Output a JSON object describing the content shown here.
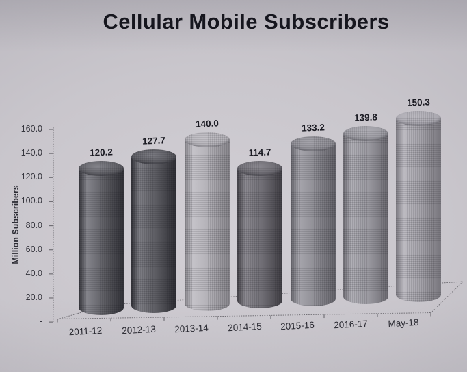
{
  "title": "Cellular Mobile Subscribers",
  "chart_data": {
    "type": "bar",
    "subtype": "3d-cylinder",
    "title": "Cellular Mobile Subscribers",
    "categories": [
      "2011-12",
      "2012-13",
      "2013-14",
      "2014-15",
      "2015-16",
      "2016-17",
      "May-18"
    ],
    "values": [
      120.2,
      127.7,
      140.0,
      114.7,
      133.2,
      139.8,
      150.3
    ],
    "data_labels": [
      "120.2",
      "127.7",
      "140.0",
      "114.7",
      "133.2",
      "139.8",
      "150.3"
    ],
    "xlabel": "",
    "ylabel": "Million Subscribers",
    "ylim": [
      0,
      160
    ],
    "ytick_step": 20,
    "ytick_labels": [
      "160.0",
      "140.0",
      "120.0",
      "100.0",
      "80.0",
      "60.0",
      "40.0",
      "20.0",
      "-"
    ],
    "grid": false,
    "legend": "none",
    "bar_colors": [
      {
        "edge": "#35353b",
        "mid": "#606066",
        "hi": "#84848b",
        "cap": "#5d5d63"
      },
      {
        "edge": "#323238",
        "mid": "#5b5b61",
        "hi": "#7e7e85",
        "cap": "#58585e"
      },
      {
        "edge": "#8b898f",
        "mid": "#b2b0b6",
        "hi": "#c5c3c9",
        "cap": "#b5b3b9"
      },
      {
        "edge": "#454349",
        "mid": "#6f6d74",
        "hi": "#8c8a91",
        "cap": "#6b6970"
      },
      {
        "edge": "#67666d",
        "mid": "#8f8e95",
        "hi": "#a6a5ac",
        "cap": "#908f96"
      },
      {
        "edge": "#716f76",
        "mid": "#9a99a0",
        "hi": "#b1b0b7",
        "cap": "#9d9ca3"
      },
      {
        "edge": "#7b7980",
        "mid": "#a5a3aa",
        "hi": "#bcbac1",
        "cap": "#aba9b1"
      }
    ],
    "colors": {
      "paper": "#c9c6cc",
      "title_text": "#16161e",
      "tick_text": "#36363e",
      "axis_line": "#716f75"
    }
  }
}
